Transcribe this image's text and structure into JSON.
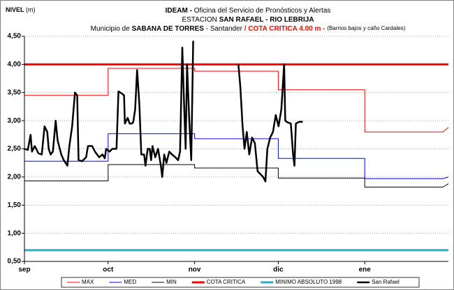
{
  "chart_data": {
    "type": "line",
    "title": {
      "line1": [
        "IDEAM -",
        " Oficina del Servicio de Pronósticos y Alertas"
      ],
      "line2": [
        "ESTACION ",
        "SAN RAFAEL - RIO LEBRIJA"
      ],
      "line3": [
        "Municipio de ",
        "SABANA DE TORRES",
        " - Santander ",
        " / ",
        " COTA CRITICA 4.00 m - ",
        " (Barrios bajos y caño Cardales)"
      ]
    },
    "y_label": [
      "NIVEL",
      " (m)"
    ],
    "xlim": [
      0,
      152
    ],
    "xticks": [
      {
        "value": 0,
        "label": "sep"
      },
      {
        "value": 30,
        "label": "oct"
      },
      {
        "value": 61,
        "label": "nov"
      },
      {
        "value": 91,
        "label": "dic"
      },
      {
        "value": 122,
        "label": "ene"
      }
    ],
    "ylim": [
      0.5,
      4.5
    ],
    "yticks": [
      {
        "value": 0.5,
        "label": "0,50"
      },
      {
        "value": 1.0,
        "label": "1,00"
      },
      {
        "value": 1.5,
        "label": "1,50"
      },
      {
        "value": 2.0,
        "label": "2,00"
      },
      {
        "value": 2.5,
        "label": "2,50"
      },
      {
        "value": 3.0,
        "label": "3,00"
      },
      {
        "value": 3.5,
        "label": "3,50"
      },
      {
        "value": 4.0,
        "label": "4,00"
      },
      {
        "value": 4.5,
        "label": "4,50"
      }
    ],
    "grid": true,
    "legend": "bottom",
    "series": [
      {
        "name": "MAX",
        "color": "#ff0000",
        "width": 1,
        "x": [
          0,
          30,
          30,
          61,
          61,
          91,
          91,
          122,
          122,
          150,
          152
        ],
        "values": [
          3.45,
          3.45,
          3.93,
          3.93,
          3.88,
          3.88,
          3.55,
          3.55,
          2.8,
          2.8,
          2.88
        ]
      },
      {
        "name": "MED",
        "color": "#0000ff",
        "width": 1,
        "x": [
          0,
          30,
          30,
          61,
          61,
          91,
          91,
          122,
          122,
          150,
          152
        ],
        "values": [
          2.28,
          2.28,
          2.77,
          2.77,
          2.68,
          2.68,
          2.33,
          2.33,
          1.97,
          1.97,
          2.0
        ]
      },
      {
        "name": "MIN",
        "color": "#000000",
        "width": 1,
        "x": [
          0,
          30,
          30,
          61,
          61,
          91,
          91,
          122,
          122,
          150,
          152
        ],
        "values": [
          1.93,
          1.93,
          2.22,
          2.22,
          2.16,
          2.16,
          1.98,
          1.98,
          1.82,
          1.82,
          1.88
        ]
      },
      {
        "name": "COTA CRITICA",
        "color": "#ff0000",
        "width": 3,
        "x": [
          0,
          152
        ],
        "values": [
          4.0,
          4.0
        ]
      },
      {
        "name": "MINIMO ABSOLUTO 1998",
        "color": "#33a6cc",
        "width": 3,
        "x": [
          0,
          152
        ],
        "values": [
          0.7,
          0.7
        ]
      },
      {
        "name": "San Rafael",
        "color": "#000000",
        "width": 2.5,
        "x": [
          0,
          1.2,
          2.2,
          2.7,
          3.7,
          5.0,
          6.2,
          7.2,
          8.2,
          8.7,
          9.4,
          10.2,
          11.2,
          11.9,
          13.2,
          14.1,
          15.4,
          16.1,
          17.1,
          18.1,
          18.9,
          19.4,
          20.6,
          22.1,
          22.8,
          24.3,
          25.3,
          26.8,
          28.0,
          28.8,
          29.3,
          30.5,
          31.5,
          33.0,
          33.7,
          35.0,
          35.7,
          36.0,
          37.0,
          37.7,
          38.5,
          39.0,
          39.7,
          40.4,
          41.2,
          41.9,
          42.9,
          43.4,
          44.2,
          44.9,
          45.4,
          45.9,
          46.9,
          47.9,
          48.9,
          49.4,
          50.1,
          50.9,
          51.9,
          52.9,
          54.1,
          55.1,
          55.8,
          56.6,
          57.3,
          57.8,
          58.3,
          59.1,
          59.8,
          60.5,
          null,
          76.7,
          77.4,
          78.2,
          78.9,
          79.7,
          80.6,
          81.6,
          82.6,
          83.6,
          84.6,
          85.6,
          86.4,
          87.1,
          88.1,
          89.1,
          90.1,
          91.1,
          92.1,
          93.1,
          93.5,
          94.3,
          95.5,
          96.3,
          96.8,
          97.3,
          98.5,
          99.8
        ],
        "values": [
          2.5,
          2.48,
          2.75,
          2.45,
          2.55,
          2.42,
          2.4,
          2.9,
          2.8,
          2.5,
          2.4,
          2.45,
          3.0,
          2.65,
          2.4,
          2.3,
          2.2,
          2.55,
          2.9,
          3.5,
          3.45,
          2.3,
          2.28,
          2.35,
          2.55,
          2.55,
          2.45,
          2.35,
          2.4,
          2.33,
          2.5,
          2.45,
          2.5,
          2.5,
          3.52,
          3.48,
          3.45,
          2.95,
          3.05,
          2.95,
          2.95,
          2.97,
          3.2,
          3.9,
          3.3,
          2.4,
          2.4,
          2.2,
          2.5,
          2.5,
          2.3,
          2.55,
          2.35,
          2.5,
          2.2,
          2.0,
          2.4,
          2.25,
          2.45,
          2.4,
          2.35,
          2.3,
          2.45,
          4.3,
          3.2,
          2.5,
          4.0,
          3.0,
          2.3,
          4.42,
          null,
          4.0,
          3.6,
          2.9,
          2.5,
          2.8,
          2.4,
          2.7,
          2.6,
          2.1,
          2.05,
          2.0,
          1.92,
          2.5,
          2.7,
          2.8,
          3.1,
          2.9,
          3.2,
          4.0,
          3.0,
          2.97,
          2.95,
          2.4,
          2.2,
          2.95,
          2.98,
          2.98
        ]
      }
    ]
  }
}
